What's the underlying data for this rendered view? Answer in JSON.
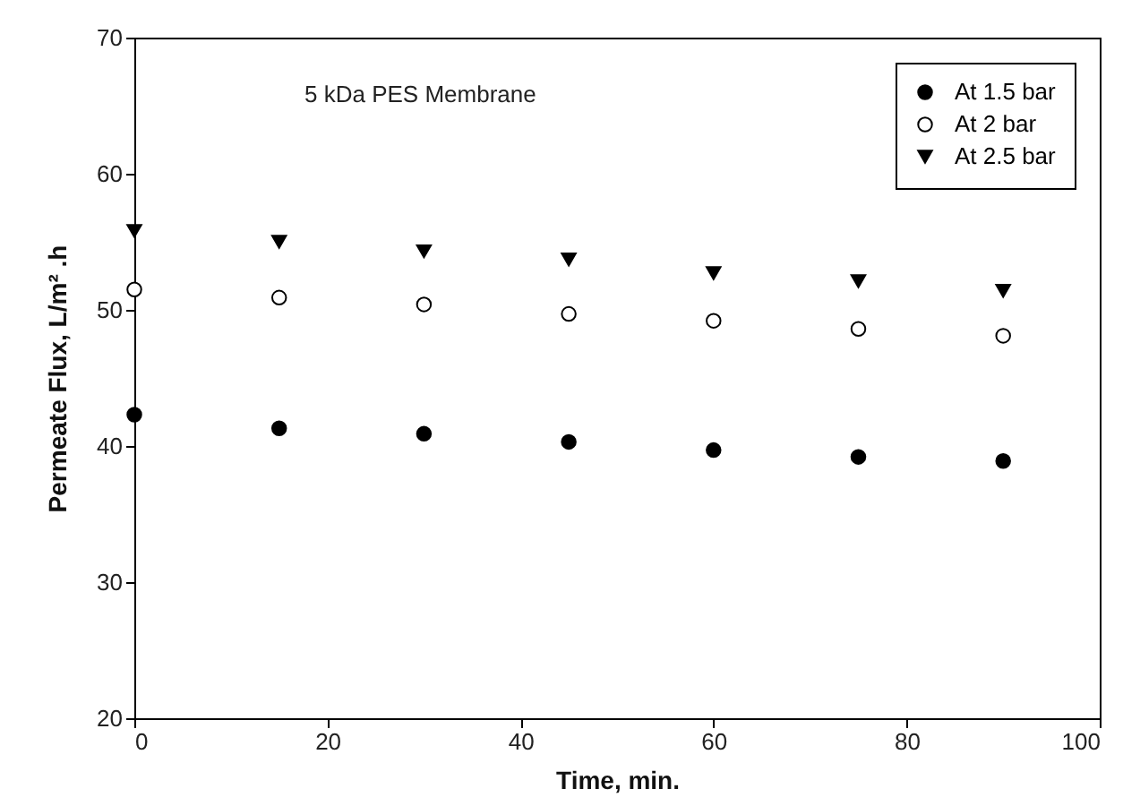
{
  "chart_data": {
    "type": "scatter",
    "xlabel": "Time, min.",
    "ylabel": "Permeate Flux, L/m² .h",
    "annotations": [
      "5 kDa PES Membrane"
    ],
    "x": [
      0,
      15,
      30,
      45,
      60,
      75,
      90
    ],
    "xlim": [
      0,
      100
    ],
    "xticks": [
      0,
      20,
      40,
      60,
      80,
      100
    ],
    "ylim": [
      20,
      70
    ],
    "yticks": [
      20,
      30,
      40,
      50,
      60,
      70
    ],
    "grid": false,
    "legend": "top right",
    "series": [
      {
        "name": "At 1.5 bar",
        "color": "#000000",
        "marker": "circle",
        "values": [
          42.3,
          41.3,
          40.9,
          40.3,
          39.7,
          39.2,
          38.9
        ]
      },
      {
        "name": "At  2  bar",
        "color": "#ffffff",
        "marker": "circle",
        "values": [
          51.5,
          50.9,
          50.4,
          49.7,
          49.2,
          48.6,
          48.1
        ]
      },
      {
        "name": "At 2.5 bar",
        "color": "#000000",
        "marker": "triangle",
        "values": [
          55.8,
          55.0,
          54.3,
          53.7,
          52.7,
          52.1,
          51.4
        ]
      }
    ]
  }
}
